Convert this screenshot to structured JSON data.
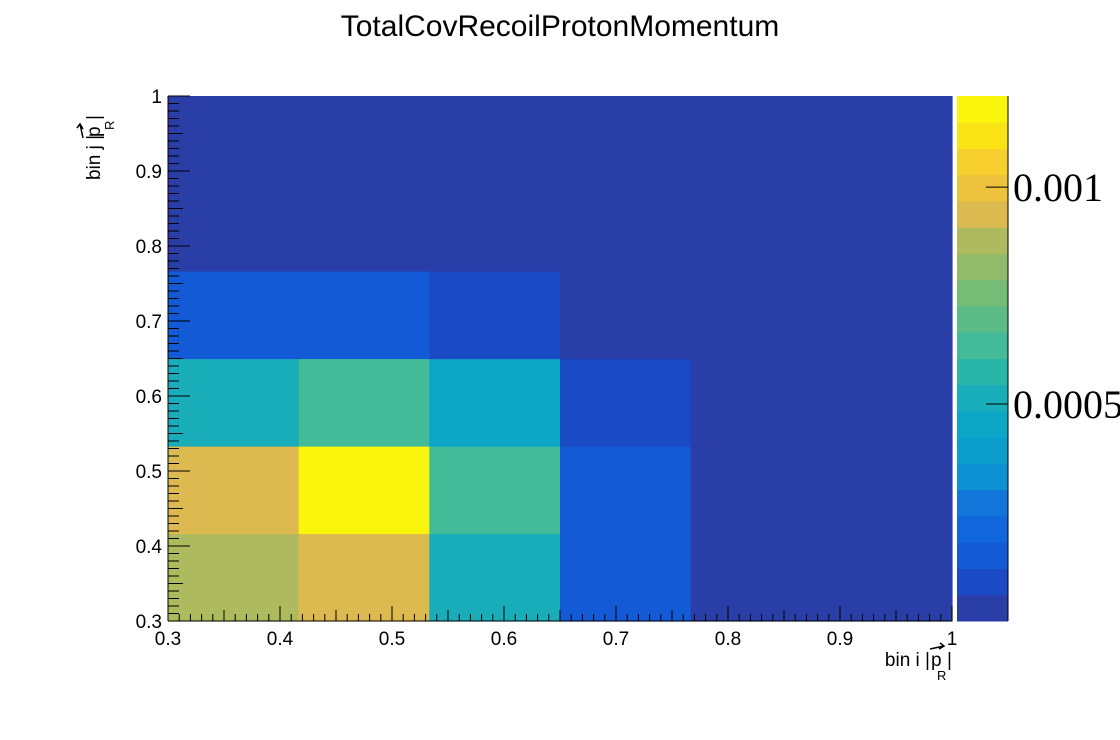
{
  "chart_data": {
    "type": "heatmap",
    "title": "TotalCovRecoilProtonMomentum",
    "xlabel": {
      "main": "bin i |",
      "vec": "p",
      "sub": "R",
      "close": "|"
    },
    "ylabel": {
      "main": "bin j |",
      "vec": "p",
      "sub": "R",
      "close": "|"
    },
    "xlim": [
      0.3,
      1.0
    ],
    "ylim": [
      0.3,
      1.0
    ],
    "x_edges": [
      0.3,
      0.4167,
      0.5333,
      0.65,
      0.7667,
      0.8833,
      1.0
    ],
    "y_edges": [
      0.3,
      0.4167,
      0.5333,
      0.65,
      0.7667,
      0.8833,
      1.0
    ],
    "x_ticks": [
      "0.3",
      "0.4",
      "0.5",
      "0.6",
      "0.7",
      "0.8",
      "0.9",
      "1"
    ],
    "y_ticks": [
      "0.3",
      "0.4",
      "0.5",
      "0.6",
      "0.7",
      "0.8",
      "0.9",
      "1"
    ],
    "z_ticks": [
      "0.0005",
      "0.001"
    ],
    "z_tick_values": [
      0.0005,
      0.001
    ],
    "zlim": [
      0.0,
      0.00121
    ],
    "colorbar_levels": 20,
    "values": [
      [
        0.00088,
        0.00095,
        0.00052,
        0.00015,
        0.0,
        0.0
      ],
      [
        0.00095,
        0.00121,
        0.00062,
        0.00015,
        0.0,
        0.0
      ],
      [
        0.00052,
        0.00062,
        0.00043,
        8e-05,
        0.0,
        0.0
      ],
      [
        0.00015,
        0.00015,
        8e-05,
        0.0,
        0.0,
        0.0
      ],
      [
        0.0,
        0.0,
        0.0,
        0.0,
        0.0,
        0.0
      ],
      [
        0.0,
        0.0,
        0.0,
        0.0,
        0.0,
        0.0
      ]
    ],
    "palette": [
      "#2a3ea8",
      "#1a4ac4",
      "#125ad6",
      "#1266dc",
      "#1275da",
      "#0f83d6",
      "#0c91d2",
      "#0b9dcc",
      "#0ca6c6",
      "#18adb9",
      "#2ab5a9",
      "#43ba98",
      "#5bbc87",
      "#75bd77",
      "#92bb69",
      "#aeba5e",
      "#c9b85a",
      "#ddba4f",
      "#edc23c",
      "#f7cf2e",
      "#f9e315",
      "#f9f50c"
    ]
  }
}
